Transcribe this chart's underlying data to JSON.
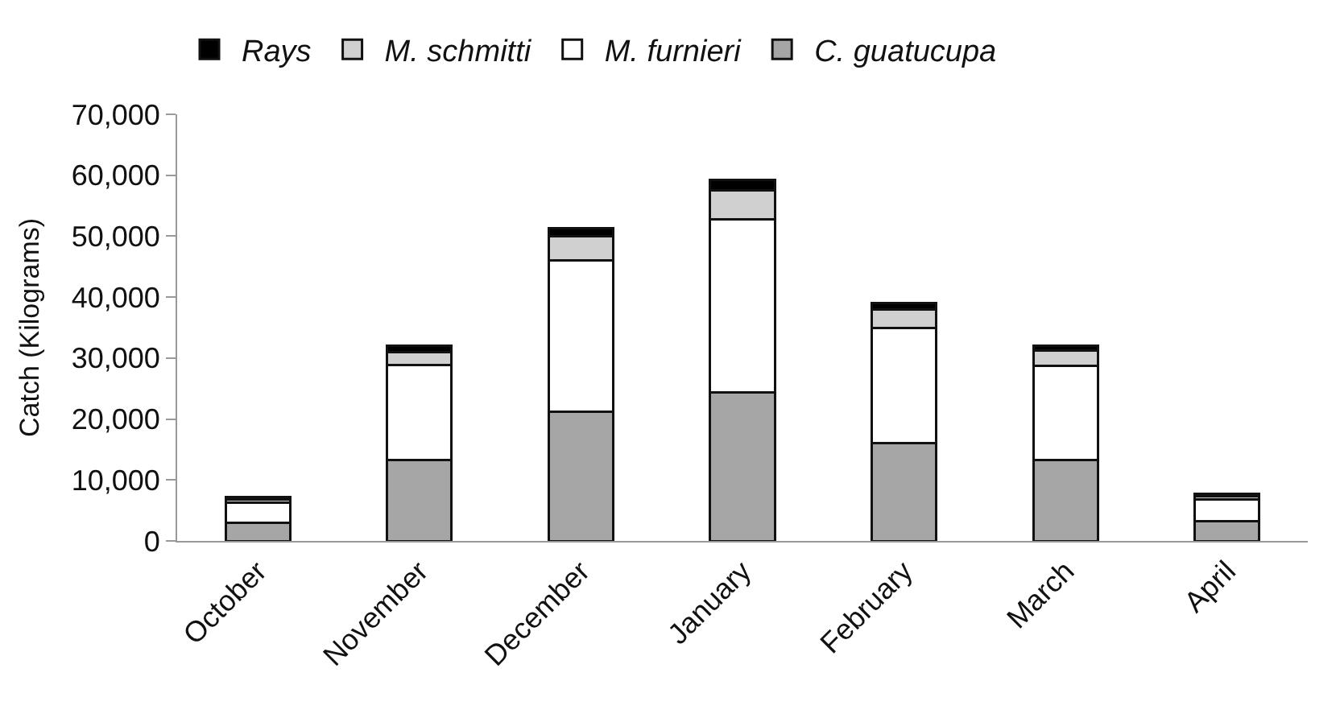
{
  "chart_data": {
    "type": "bar",
    "stacked": true,
    "ylabel": "Catch (Kilograms)",
    "categories": [
      "October",
      "November",
      "December",
      "January",
      "February",
      "March",
      "April"
    ],
    "series": [
      {
        "name": "C. guatucupa",
        "color": "#a6a6a6",
        "values": [
          3000,
          13300,
          21200,
          24400,
          16100,
          13300,
          3200
        ]
      },
      {
        "name": "M. furnieri",
        "color": "#ffffff",
        "values": [
          3300,
          15500,
          24800,
          28400,
          18900,
          15400,
          3600
        ]
      },
      {
        "name": "M. schmitti",
        "color": "#d0d0d0",
        "values": [
          500,
          2200,
          4000,
          4700,
          3000,
          2600,
          500
        ]
      },
      {
        "name": "Rays",
        "color": "#000000",
        "values": [
          400,
          1000,
          1300,
          1700,
          1000,
          700,
          400
        ]
      }
    ],
    "ylim": [
      0,
      70000
    ],
    "yticks": [
      {
        "value": 0,
        "label": "0"
      },
      {
        "value": 10000,
        "label": "10,000"
      },
      {
        "value": 20000,
        "label": "20,000"
      },
      {
        "value": 30000,
        "label": "30,000"
      },
      {
        "value": 40000,
        "label": "40,000"
      },
      {
        "value": 50000,
        "label": "50,000"
      },
      {
        "value": 60000,
        "label": "60,000"
      },
      {
        "value": 70000,
        "label": "70,000"
      }
    ],
    "legend": "top"
  }
}
